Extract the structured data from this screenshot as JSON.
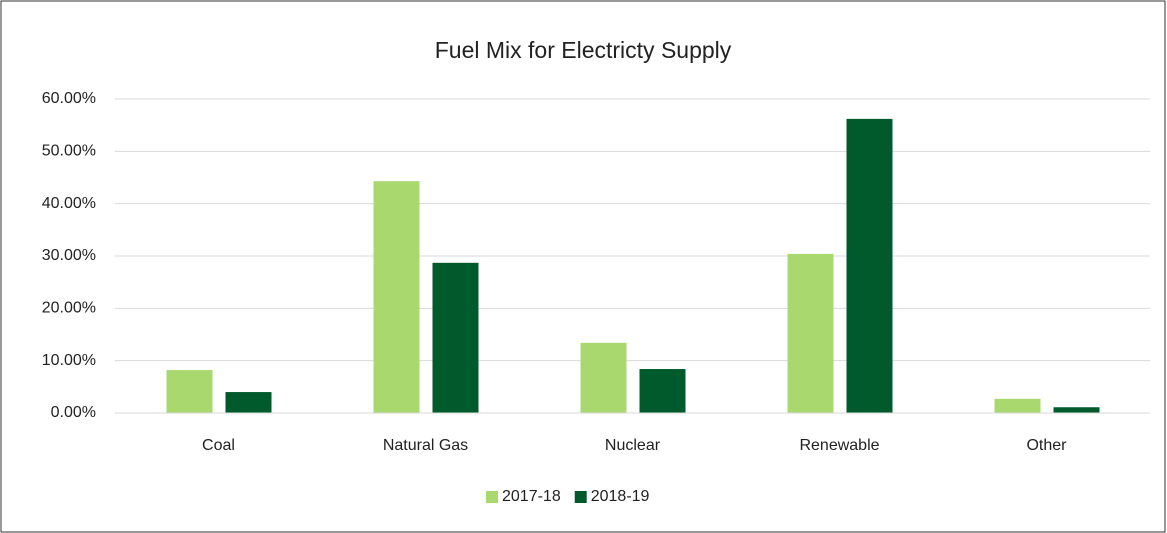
{
  "chart_data": {
    "type": "bar",
    "title": "Fuel Mix for Electricty Supply",
    "categories": [
      "Coal",
      "Natural Gas",
      "Nuclear",
      "Renewable",
      "Other"
    ],
    "series": [
      {
        "name": "2017-18",
        "color": "#a9d86e",
        "values": [
          8.2,
          44.3,
          13.4,
          30.4,
          2.7
        ]
      },
      {
        "name": "2018-19",
        "color": "#005a2b",
        "values": [
          4.0,
          28.7,
          8.4,
          56.2,
          1.1
        ]
      }
    ],
    "ylim": [
      0,
      60
    ],
    "yticks": [
      {
        "value": 0,
        "label": "0.00%"
      },
      {
        "value": 10,
        "label": "10.00%"
      },
      {
        "value": 20,
        "label": "20.00%"
      },
      {
        "value": 30,
        "label": "30.00%"
      },
      {
        "value": 40,
        "label": "40.00%"
      },
      {
        "value": 50,
        "label": "50.00%"
      },
      {
        "value": 60,
        "label": "60.00%"
      }
    ],
    "grid": true,
    "legend": "bottom"
  }
}
